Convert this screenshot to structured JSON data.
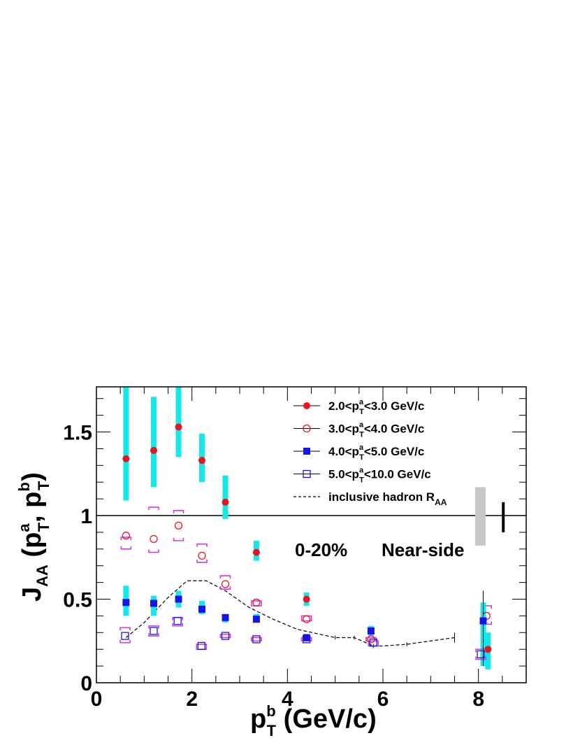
{
  "chart_data": {
    "type": "scatter",
    "title": "",
    "xlabel": {
      "base": "p",
      "sub": "T",
      "sup": "b",
      "rest": " (GeV/c)"
    },
    "ylabel": {
      "base": "J",
      "sub": "AA",
      "rest": " (p",
      "sub2": "T",
      "sup2": "a",
      "mid": ", p",
      "sub3": "T",
      "sup3": "b",
      "end": ")"
    },
    "xlim": [
      0,
      9
    ],
    "ylim": [
      0,
      1.77
    ],
    "x_ticks": [
      0,
      2,
      4,
      6,
      8
    ],
    "x_tick_labels": [
      "0",
      "2",
      "4",
      "6",
      "8"
    ],
    "y_ticks": [
      0,
      0.5,
      1,
      1.5
    ],
    "y_tick_labels": [
      "0",
      "0.5",
      "1",
      "1.5"
    ],
    "reference_line": 1,
    "grid": false,
    "legend_position": "top-right",
    "annotations": [
      "0-20%",
      "Near-side"
    ],
    "series": [
      {
        "name": "2.0<p_T^a<3.0 GeV/c",
        "legend": {
          "a": "2.0<p",
          "b": "<3.0 GeV/c"
        },
        "marker": "filled-circle",
        "color": "#e8141e",
        "x": [
          0.62,
          1.2,
          1.72,
          2.21,
          2.7,
          3.35,
          4.4,
          8.2
        ],
        "y": [
          1.34,
          1.39,
          1.53,
          1.33,
          1.08,
          0.78,
          0.5,
          0.2
        ],
        "syst": [
          [
            1.09,
            1.77
          ],
          [
            1.17,
            1.71
          ],
          [
            1.35,
            1.77
          ],
          [
            1.2,
            1.49
          ],
          [
            0.98,
            1.24
          ],
          [
            0.73,
            0.85
          ],
          [
            0.46,
            0.54
          ],
          [
            0.08,
            0.3
          ]
        ],
        "syst_style": "bar"
      },
      {
        "name": "3.0<p_T^a<4.0 GeV/c",
        "legend": {
          "a": "3.0<p",
          "b": "<4.0 GeV/c"
        },
        "marker": "open-circle",
        "color": "#e8141e",
        "x": [
          0.62,
          1.2,
          1.72,
          2.21,
          2.7,
          3.35,
          4.4,
          5.75,
          8.17
        ],
        "y": [
          0.88,
          0.86,
          0.94,
          0.76,
          0.59,
          0.48,
          0.38,
          0.26,
          0.4
        ],
        "syst": [
          [
            0.8,
            0.87
          ],
          [
            0.78,
            1.05
          ],
          [
            0.85,
            1.03
          ],
          [
            0.72,
            0.83
          ],
          [
            0.56,
            0.64
          ],
          [
            0.46,
            0.49
          ],
          [
            0.37,
            0.4
          ],
          [
            0.25,
            0.27
          ],
          [
            0.35,
            0.46
          ]
        ],
        "syst_style": "box"
      },
      {
        "name": "4.0<p_T^a<5.0 GeV/c",
        "legend": {
          "a": "4.0<p",
          "b": "<5.0 GeV/c"
        },
        "marker": "filled-square",
        "color": "#1414e6",
        "x": [
          0.62,
          1.2,
          1.72,
          2.21,
          2.7,
          3.35,
          4.4,
          5.75,
          8.1
        ],
        "y": [
          0.48,
          0.475,
          0.5,
          0.44,
          0.39,
          0.38,
          0.27,
          0.31,
          0.37
        ],
        "syst": [
          [
            0.4,
            0.58
          ],
          [
            0.4,
            0.52
          ],
          [
            0.45,
            0.55
          ],
          [
            0.41,
            0.49
          ],
          [
            0.36,
            0.41
          ],
          [
            0.36,
            0.41
          ],
          [
            0.25,
            0.29
          ],
          [
            0.28,
            0.34
          ],
          [
            0.1,
            0.48
          ]
        ],
        "syst_style": "bar"
      },
      {
        "name": "5.0<p_T^a<10.0 GeV/c",
        "legend": {
          "a": "5.0<p",
          "b": "<10.0 GeV/c"
        },
        "marker": "open-square",
        "color": "#1414e6",
        "x": [
          0.6,
          1.2,
          1.7,
          2.2,
          2.7,
          3.35,
          4.4,
          5.8,
          8.05
        ],
        "y": [
          0.28,
          0.31,
          0.37,
          0.22,
          0.28,
          0.26,
          0.26,
          0.24,
          0.17
        ],
        "syst": [
          [
            0.24,
            0.33
          ],
          [
            0.28,
            0.34
          ],
          [
            0.34,
            0.39
          ],
          [
            0.2,
            0.23
          ],
          [
            0.27,
            0.29
          ],
          [
            0.25,
            0.27
          ],
          [
            0.25,
            0.27
          ],
          [
            0.22,
            0.25
          ],
          [
            0.14,
            0.2
          ]
        ],
        "syst_style": "box"
      },
      {
        "name": "inclusive hadron R_AA",
        "legend": {
          "a": "inclusive hadron R",
          "sub": "AA"
        },
        "marker": "dashed-line",
        "color": "#000000",
        "x": [
          0.62,
          1.0,
          1.5,
          1.9,
          2.3,
          2.7,
          3.2,
          3.7,
          4.2,
          5.0,
          5.4,
          5.8,
          6.0,
          6.5,
          7.0,
          7.5
        ],
        "y": [
          0.27,
          0.36,
          0.51,
          0.61,
          0.61,
          0.55,
          0.45,
          0.38,
          0.32,
          0.27,
          0.27,
          0.22,
          0.22,
          0.23,
          0.25,
          0.27
        ]
      }
    ],
    "normalization_uncertainty_band": [
      0.82,
      1.17
    ],
    "normalization_uncertainty_bar": [
      0.9,
      1.08
    ]
  }
}
